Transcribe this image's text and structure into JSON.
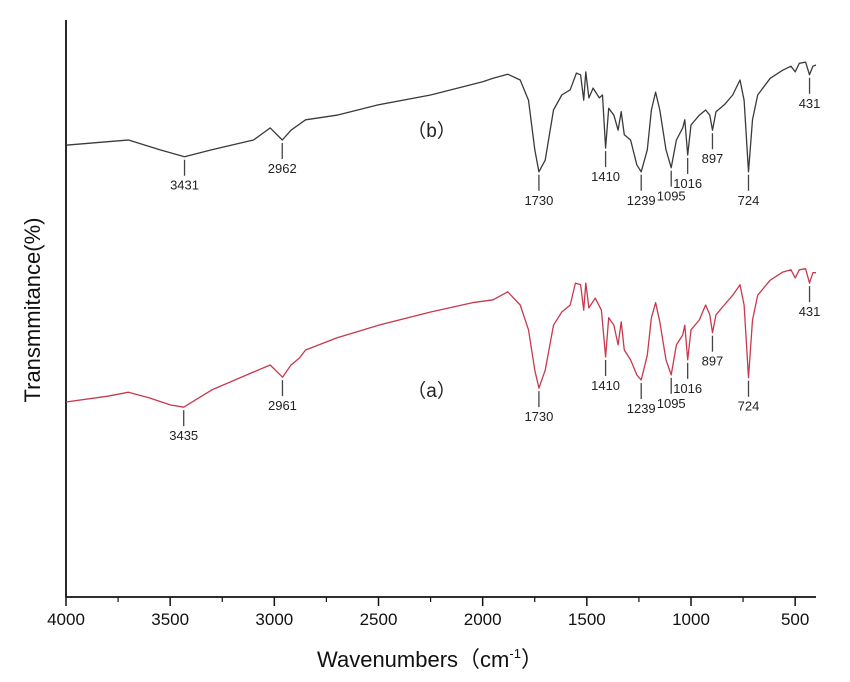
{
  "chart_data": {
    "type": "line",
    "title": "",
    "xlabel": "Wavenumbers（cm",
    "xlabel_sup": "-1",
    "xlabel_close": "）",
    "ylabel": "Transmmitance(%)",
    "xlim": [
      4000,
      400
    ],
    "ylim": [
      0,
      100
    ],
    "x_reversed": true,
    "y_tick_labels_shown": false,
    "grid": false,
    "x_ticks": [
      4000,
      3500,
      3000,
      2500,
      2000,
      1500,
      1000,
      500
    ],
    "x_tick_labels": [
      "4000",
      "3500",
      "3000",
      "2500",
      "2000",
      "1500",
      "1000",
      "500"
    ],
    "series": [
      {
        "name": "（b）",
        "color": "#3a3a3a",
        "label_at": [
          2362,
          79.7
        ],
        "points": [
          [
            4000,
            78.3
          ],
          [
            3800,
            78.9
          ],
          [
            3700,
            79.2
          ],
          [
            3550,
            77.5
          ],
          [
            3431,
            76.3
          ],
          [
            3300,
            77.5
          ],
          [
            3100,
            79.2
          ],
          [
            3020,
            81.3
          ],
          [
            2962,
            79.2
          ],
          [
            2920,
            80.9
          ],
          [
            2850,
            82.7
          ],
          [
            2700,
            83.5
          ],
          [
            2500,
            85.3
          ],
          [
            2250,
            87.0
          ],
          [
            2000,
            89.3
          ],
          [
            1950,
            89.9
          ],
          [
            1880,
            90.6
          ],
          [
            1820,
            89.6
          ],
          [
            1780,
            86.1
          ],
          [
            1750,
            77.5
          ],
          [
            1730,
            73.7
          ],
          [
            1700,
            75.7
          ],
          [
            1660,
            84.4
          ],
          [
            1620,
            87.0
          ],
          [
            1580,
            87.9
          ],
          [
            1550,
            90.8
          ],
          [
            1530,
            90.5
          ],
          [
            1515,
            86.1
          ],
          [
            1505,
            91.0
          ],
          [
            1490,
            86.5
          ],
          [
            1470,
            88.2
          ],
          [
            1440,
            86.5
          ],
          [
            1425,
            87.0
          ],
          [
            1410,
            77.8
          ],
          [
            1395,
            84.7
          ],
          [
            1370,
            83.5
          ],
          [
            1350,
            80.9
          ],
          [
            1335,
            84.1
          ],
          [
            1320,
            80.1
          ],
          [
            1290,
            79.2
          ],
          [
            1260,
            74.9
          ],
          [
            1239,
            73.7
          ],
          [
            1210,
            77.5
          ],
          [
            1190,
            84.4
          ],
          [
            1170,
            87.5
          ],
          [
            1150,
            84.4
          ],
          [
            1120,
            77.5
          ],
          [
            1095,
            74.4
          ],
          [
            1070,
            79.2
          ],
          [
            1040,
            81.3
          ],
          [
            1030,
            82.7
          ],
          [
            1016,
            76.6
          ],
          [
            1000,
            81.8
          ],
          [
            960,
            83.5
          ],
          [
            930,
            84.4
          ],
          [
            910,
            83.5
          ],
          [
            897,
            80.9
          ],
          [
            880,
            84.1
          ],
          [
            840,
            85.3
          ],
          [
            800,
            87.0
          ],
          [
            765,
            89.6
          ],
          [
            745,
            86.1
          ],
          [
            724,
            73.7
          ],
          [
            705,
            82.7
          ],
          [
            680,
            87.0
          ],
          [
            620,
            89.9
          ],
          [
            560,
            91.3
          ],
          [
            520,
            92.0
          ],
          [
            500,
            91.0
          ],
          [
            480,
            92.5
          ],
          [
            450,
            92.7
          ],
          [
            431,
            90.5
          ],
          [
            415,
            92.0
          ],
          [
            400,
            92.2
          ]
        ],
        "annotations": [
          {
            "x": 3431,
            "label": "3431"
          },
          {
            "x": 2962,
            "label": "2962"
          },
          {
            "x": 1730,
            "label": "1730"
          },
          {
            "x": 1410,
            "label": "1410"
          },
          {
            "x": 1239,
            "label": "1239"
          },
          {
            "x": 1095,
            "label": "1095"
          },
          {
            "x": 1016,
            "label": "1016"
          },
          {
            "x": 897,
            "label": "897"
          },
          {
            "x": 724,
            "label": "724"
          },
          {
            "x": 431,
            "label": "431"
          }
        ]
      },
      {
        "name": "（a）",
        "color": "#c8384e",
        "label_at": [
          2362,
          34.7
        ],
        "points": [
          [
            4000,
            33.8
          ],
          [
            3800,
            34.8
          ],
          [
            3700,
            35.5
          ],
          [
            3600,
            34.5
          ],
          [
            3500,
            33.3
          ],
          [
            3435,
            32.9
          ],
          [
            3300,
            35.9
          ],
          [
            3100,
            39.0
          ],
          [
            3020,
            40.2
          ],
          [
            2961,
            38.1
          ],
          [
            2920,
            40.2
          ],
          [
            2880,
            41.4
          ],
          [
            2850,
            42.8
          ],
          [
            2700,
            44.9
          ],
          [
            2500,
            47.1
          ],
          [
            2250,
            49.4
          ],
          [
            2050,
            51.0
          ],
          [
            1950,
            51.5
          ],
          [
            1880,
            52.9
          ],
          [
            1820,
            50.6
          ],
          [
            1780,
            46.3
          ],
          [
            1750,
            39.3
          ],
          [
            1730,
            36.2
          ],
          [
            1700,
            39.3
          ],
          [
            1660,
            47.1
          ],
          [
            1620,
            49.4
          ],
          [
            1580,
            50.6
          ],
          [
            1555,
            54.4
          ],
          [
            1530,
            54.1
          ],
          [
            1515,
            49.7
          ],
          [
            1505,
            54.4
          ],
          [
            1490,
            50.1
          ],
          [
            1460,
            51.8
          ],
          [
            1430,
            49.7
          ],
          [
            1410,
            41.6
          ],
          [
            1395,
            48.4
          ],
          [
            1370,
            47.1
          ],
          [
            1350,
            43.7
          ],
          [
            1335,
            47.7
          ],
          [
            1320,
            42.8
          ],
          [
            1290,
            41.1
          ],
          [
            1260,
            38.5
          ],
          [
            1239,
            37.6
          ],
          [
            1210,
            41.9
          ],
          [
            1190,
            48.4
          ],
          [
            1170,
            51.0
          ],
          [
            1150,
            47.7
          ],
          [
            1120,
            41.1
          ],
          [
            1095,
            38.5
          ],
          [
            1070,
            43.7
          ],
          [
            1040,
            45.4
          ],
          [
            1030,
            47.1
          ],
          [
            1016,
            41.1
          ],
          [
            1000,
            46.3
          ],
          [
            960,
            48.0
          ],
          [
            930,
            50.6
          ],
          [
            910,
            48.9
          ],
          [
            897,
            45.8
          ],
          [
            880,
            48.9
          ],
          [
            840,
            50.6
          ],
          [
            800,
            52.3
          ],
          [
            765,
            54.1
          ],
          [
            745,
            50.6
          ],
          [
            724,
            38.0
          ],
          [
            705,
            48.0
          ],
          [
            680,
            52.3
          ],
          [
            620,
            54.9
          ],
          [
            560,
            56.3
          ],
          [
            520,
            56.7
          ],
          [
            500,
            55.3
          ],
          [
            480,
            56.7
          ],
          [
            450,
            56.9
          ],
          [
            431,
            54.4
          ],
          [
            415,
            56.2
          ],
          [
            400,
            56.2
          ]
        ],
        "annotations": [
          {
            "x": 3435,
            "label": "3435"
          },
          {
            "x": 2961,
            "label": "2961"
          },
          {
            "x": 1730,
            "label": "1730"
          },
          {
            "x": 1410,
            "label": "1410"
          },
          {
            "x": 1239,
            "label": "1239"
          },
          {
            "x": 1095,
            "label": "1095"
          },
          {
            "x": 1016,
            "label": "1016"
          },
          {
            "x": 897,
            "label": "897"
          },
          {
            "x": 724,
            "label": "724"
          },
          {
            "x": 431,
            "label": "431"
          }
        ]
      }
    ]
  }
}
